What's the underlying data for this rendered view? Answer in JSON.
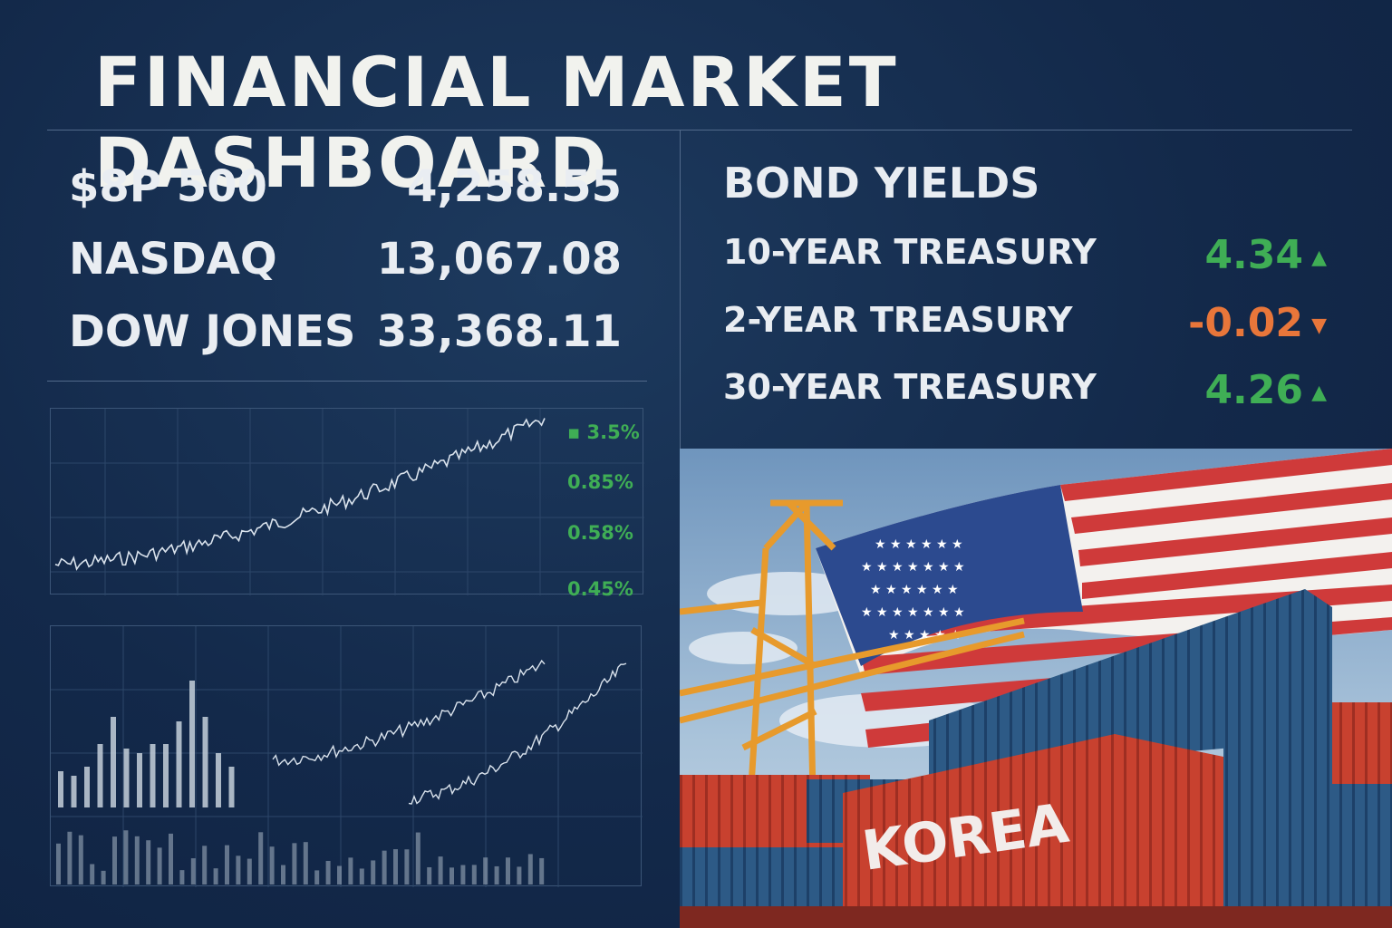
{
  "title": "FINANCIAL MARKET DASHBOARD",
  "indices": [
    {
      "name": "$8P 500",
      "value": "4,258.55"
    },
    {
      "name": "NASDAQ",
      "value": "13,067.08"
    },
    {
      "name": "DOW JONES",
      "value": "33,368.11"
    }
  ],
  "bonds": {
    "title": "BOND YIELDS",
    "items": [
      {
        "name": "10-YEAR TREASURY",
        "value": "4.34",
        "direction": "up",
        "arrow": "▲"
      },
      {
        "name": "2-YEAR TREASURY",
        "value": "-0.02",
        "direction": "down",
        "arrow": "▼"
      },
      {
        "name": "30-YEAR TREASURY",
        "value": "4.26",
        "direction": "up",
        "arrow": "▲"
      }
    ]
  },
  "chart_pct_labels": [
    "▪ 3.5%",
    "0.85%",
    "0.58%",
    "0.45%"
  ],
  "photo": {
    "container_label": "KOREA",
    "icons": [
      "gantry-crane-icon",
      "us-flag-icon",
      "shipping-container-icon"
    ]
  },
  "colors": {
    "background": "#13294a",
    "up": "#3fae55",
    "down": "#e8763a",
    "line": "#d9e2ec",
    "divider": "#51698a"
  }
}
